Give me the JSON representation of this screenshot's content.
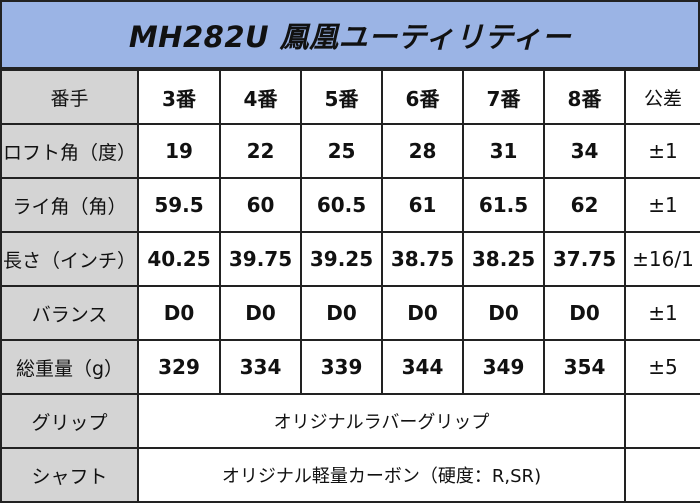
{
  "title": "MH282U 鳳凰ユーティリティー",
  "header": {
    "label": "番手",
    "columns": [
      "3番",
      "4番",
      "5番",
      "6番",
      "7番",
      "8番"
    ],
    "tolerance": "公差"
  },
  "rows": [
    {
      "label": "ロフト角（度）",
      "values": [
        "19",
        "22",
        "25",
        "28",
        "31",
        "34"
      ],
      "tolerance": "±1"
    },
    {
      "label": "ライ角（角）",
      "values": [
        "59.5",
        "60",
        "60.5",
        "61",
        "61.5",
        "62"
      ],
      "tolerance": "±1"
    },
    {
      "label": "長さ（インチ）",
      "values": [
        "40.25",
        "39.75",
        "39.25",
        "38.75",
        "38.25",
        "37.75"
      ],
      "tolerance": "±16/1"
    },
    {
      "label": "バランス",
      "values": [
        "D0",
        "D0",
        "D0",
        "D0",
        "D0",
        "D0"
      ],
      "tolerance": "±1"
    },
    {
      "label": "総重量（g）",
      "values": [
        "329",
        "334",
        "339",
        "344",
        "349",
        "354"
      ],
      "tolerance": "±5"
    }
  ],
  "grip": {
    "label": "グリップ",
    "value": "オリジナルラバーグリップ",
    "tolerance": ""
  },
  "shaft": {
    "label": "シャフト",
    "value": "オリジナル軽量カーボン（硬度：R,SR)",
    "tolerance": ""
  }
}
